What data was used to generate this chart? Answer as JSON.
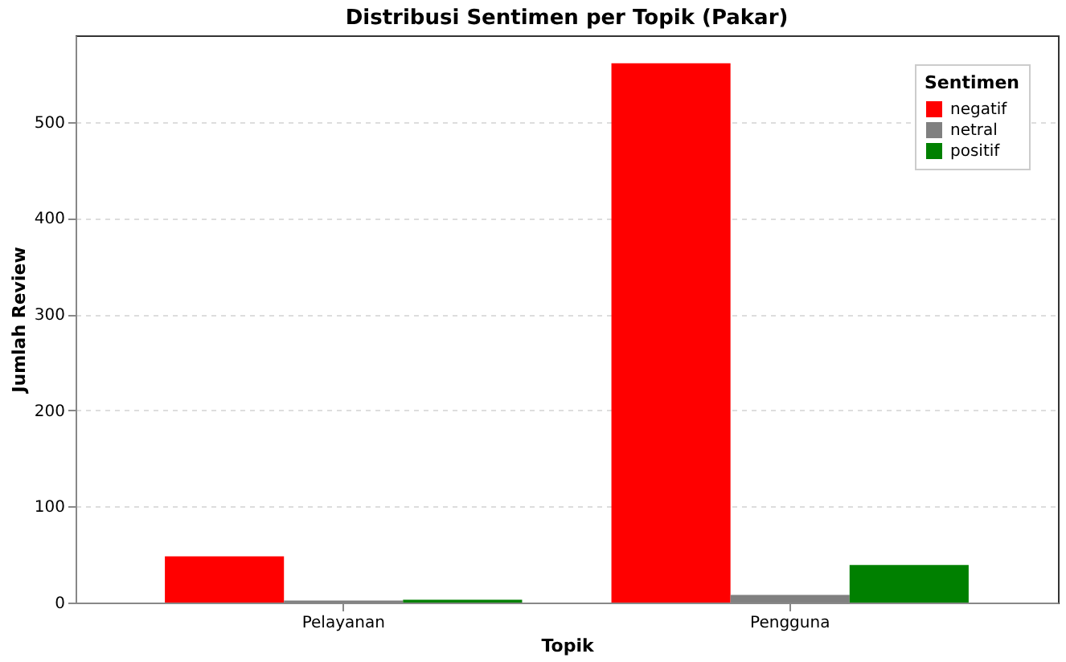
{
  "chart_data": {
    "type": "bar",
    "title": "Distribusi Sentimen per Topik (Pakar)",
    "xlabel": "Topik",
    "ylabel": "Jumlah Review",
    "legend_title": "Sentimen",
    "categories": [
      "Pelayanan",
      "Pengguna"
    ],
    "series": [
      {
        "name": "negatif",
        "color": "#ff0000",
        "values": [
          48,
          561
        ]
      },
      {
        "name": "netral",
        "color": "#808080",
        "values": [
          2,
          8
        ]
      },
      {
        "name": "positif",
        "color": "#008000",
        "values": [
          3,
          39
        ]
      }
    ],
    "ylim": [
      0,
      590
    ],
    "yticks": [
      0,
      100,
      200,
      300,
      400,
      500
    ],
    "grid": "y",
    "legend": "top right"
  }
}
